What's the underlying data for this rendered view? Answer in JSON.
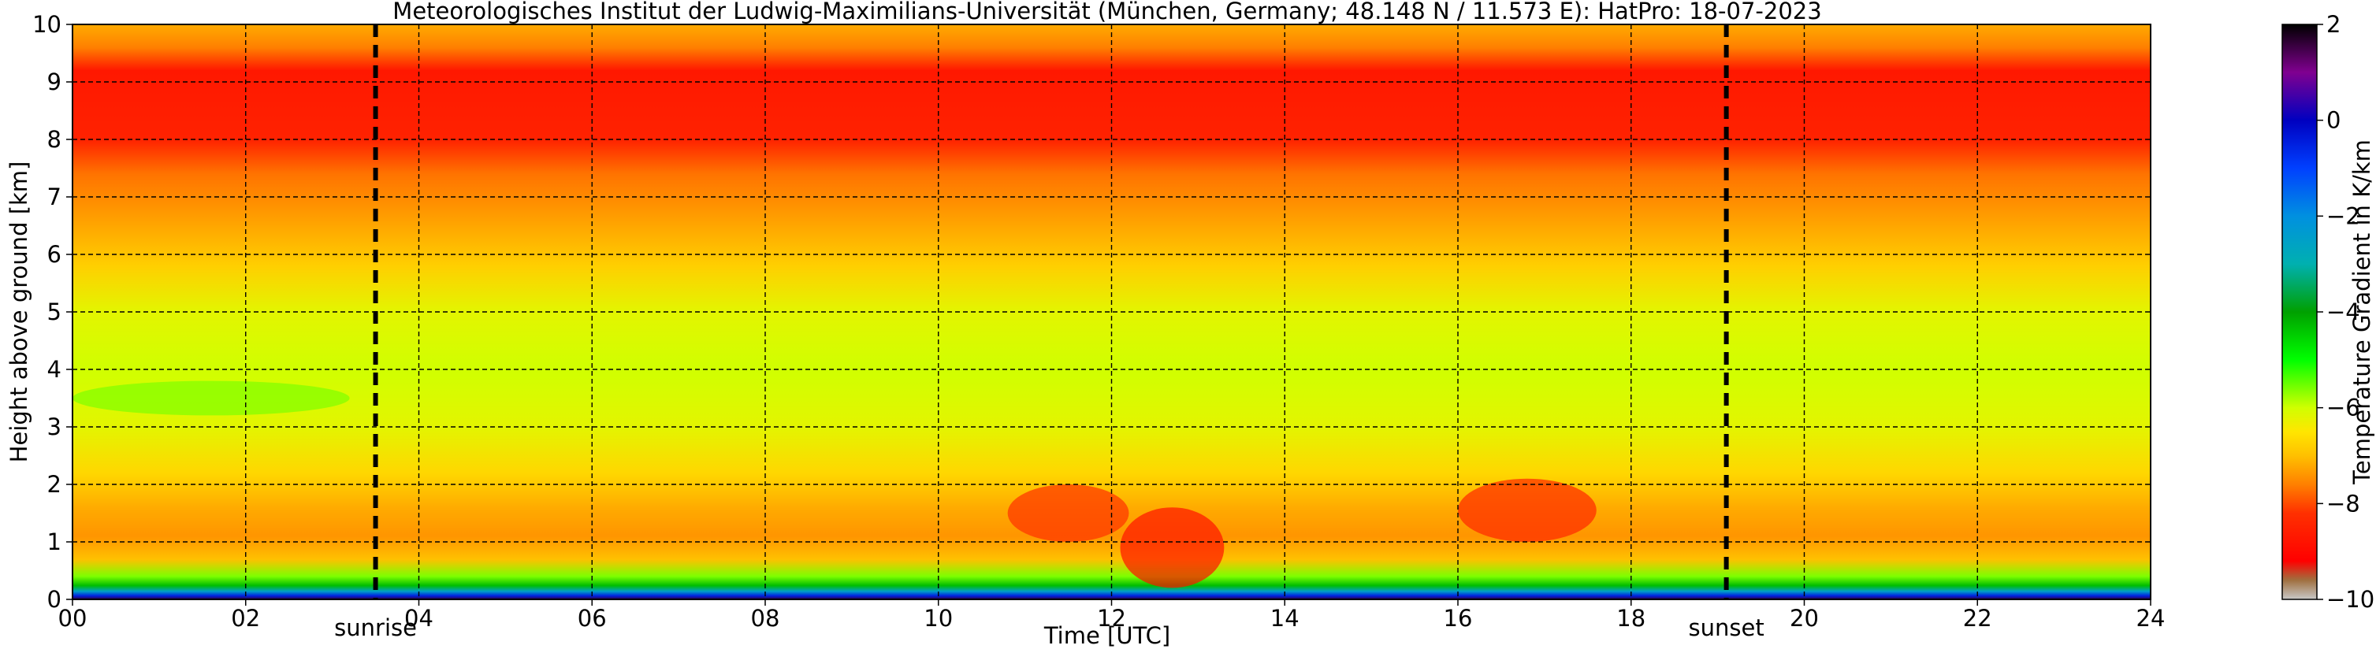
{
  "chart_data": {
    "type": "heatmap",
    "title": "Meteorologisches Institut der Ludwig-Maximilians-Universität (München, Germany; 48.148 N / 11.573 E):    HatPro: 18-07-2023",
    "xlabel": "Time [UTC]",
    "ylabel": "Height above ground [km]",
    "xlim": [
      0,
      24
    ],
    "ylim": [
      0,
      10
    ],
    "x_ticks": [
      "00",
      "02",
      "04",
      "06",
      "08",
      "10",
      "12",
      "14",
      "16",
      "18",
      "20",
      "22",
      "24"
    ],
    "y_ticks": [
      "0",
      "1",
      "2",
      "3",
      "4",
      "5",
      "6",
      "7",
      "8",
      "9",
      "10"
    ],
    "grid": true,
    "markers": [
      {
        "label": "sunrise",
        "x": 3.5
      },
      {
        "label": "sunset",
        "x": 19.1
      }
    ],
    "colorbar": {
      "label": "Temperature Gradient in K/km",
      "range": [
        -10,
        2
      ],
      "ticks": [
        "2",
        "0",
        "−2",
        "−4",
        "−6",
        "−8",
        "−10"
      ],
      "stops": [
        {
          "v": -10,
          "color": "#c8c8c8"
        },
        {
          "v": -9.6,
          "color": "#a07040"
        },
        {
          "v": -9.2,
          "color": "#ff0000"
        },
        {
          "v": -8.2,
          "color": "#ff3000"
        },
        {
          "v": -7.6,
          "color": "#ff8000"
        },
        {
          "v": -7.0,
          "color": "#ffc000"
        },
        {
          "v": -6.5,
          "color": "#ffe600"
        },
        {
          "v": -6.0,
          "color": "#d0ff00"
        },
        {
          "v": -5.0,
          "color": "#00ff00"
        },
        {
          "v": -4.0,
          "color": "#00a000"
        },
        {
          "v": -3.0,
          "color": "#00b0b0"
        },
        {
          "v": -2.0,
          "color": "#0090e0"
        },
        {
          "v": -1.0,
          "color": "#0040ff"
        },
        {
          "v": 0.0,
          "color": "#0000c0"
        },
        {
          "v": 1.0,
          "color": "#800090"
        },
        {
          "v": 2.0,
          "color": "#000000"
        }
      ]
    },
    "profile": [
      {
        "h": 0.0,
        "v": 1.6
      },
      {
        "h": 0.06,
        "v": -0.5
      },
      {
        "h": 0.14,
        "v": -2.5
      },
      {
        "h": 0.24,
        "v": -4.3
      },
      {
        "h": 0.4,
        "v": -5.6
      },
      {
        "h": 0.7,
        "v": -7.0
      },
      {
        "h": 1.1,
        "v": -7.4
      },
      {
        "h": 1.6,
        "v": -7.2
      },
      {
        "h": 2.2,
        "v": -6.7
      },
      {
        "h": 3.0,
        "v": -6.2
      },
      {
        "h": 4.0,
        "v": -6.0
      },
      {
        "h": 5.0,
        "v": -6.2
      },
      {
        "h": 5.8,
        "v": -6.8
      },
      {
        "h": 6.6,
        "v": -7.3
      },
      {
        "h": 7.4,
        "v": -7.7
      },
      {
        "h": 8.0,
        "v": -8.5
      },
      {
        "h": 9.2,
        "v": -8.7
      },
      {
        "h": 9.6,
        "v": -7.6
      },
      {
        "h": 10.0,
        "v": -7.2
      }
    ],
    "features": [
      {
        "t0": 10.8,
        "t1": 12.2,
        "h0": 1.0,
        "h1": 2.0,
        "v": -8.2
      },
      {
        "t0": 16.0,
        "t1": 17.6,
        "h0": 1.0,
        "h1": 2.1,
        "v": -8.4
      },
      {
        "t0": 12.1,
        "t1": 13.3,
        "h0": 0.2,
        "h1": 1.6,
        "v": -8.8
      },
      {
        "t0": 0.0,
        "t1": 3.2,
        "h0": 3.2,
        "h1": 3.8,
        "v": -5.6
      }
    ]
  }
}
